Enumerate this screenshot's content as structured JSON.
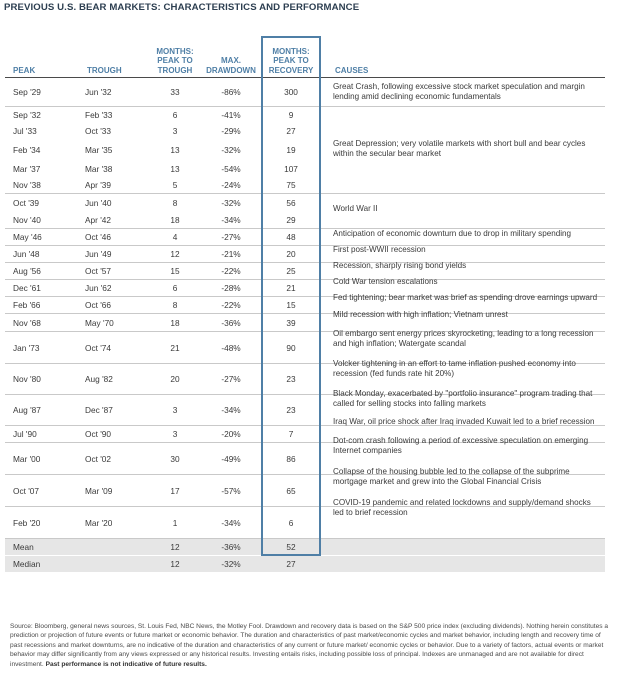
{
  "title": "PREVIOUS U.S. BEAR MARKETS: CHARACTERISTICS AND PERFORMANCE",
  "headers": {
    "peak": "PEAK",
    "trough": "TROUGH",
    "months_to_trough": [
      "MONTHS:",
      "PEAK TO",
      "TROUGH"
    ],
    "max_drawdown": [
      "MAX.",
      "DRAWDOWN"
    ],
    "months_to_recovery": [
      "MONTHS:",
      "PEAK TO",
      "RECOVERY"
    ],
    "causes": "CAUSES"
  },
  "rows": [
    {
      "peak": "Sep '29",
      "trough": "Jun '32",
      "months": "33",
      "drawdown": "-86%",
      "recovery": "300"
    },
    {
      "peak": "Sep '32",
      "trough": "Feb '33",
      "months": "6",
      "drawdown": "-41%",
      "recovery": "9"
    },
    {
      "peak": "Jul '33",
      "trough": "Oct '33",
      "months": "3",
      "drawdown": "-29%",
      "recovery": "27"
    },
    {
      "peak": "Feb '34",
      "trough": "Mar '35",
      "months": "13",
      "drawdown": "-32%",
      "recovery": "19"
    },
    {
      "peak": "Mar '37",
      "trough": "Mar '38",
      "months": "13",
      "drawdown": "-54%",
      "recovery": "107"
    },
    {
      "peak": "Nov '38",
      "trough": "Apr '39",
      "months": "5",
      "drawdown": "-24%",
      "recovery": "75"
    },
    {
      "peak": "Oct '39",
      "trough": "Jun '40",
      "months": "8",
      "drawdown": "-32%",
      "recovery": "56"
    },
    {
      "peak": "Nov '40",
      "trough": "Apr '42",
      "months": "18",
      "drawdown": "-34%",
      "recovery": "29"
    },
    {
      "peak": "May '46",
      "trough": "Oct '46",
      "months": "4",
      "drawdown": "-27%",
      "recovery": "48"
    },
    {
      "peak": "Jun '48",
      "trough": "Jun '49",
      "months": "12",
      "drawdown": "-21%",
      "recovery": "20"
    },
    {
      "peak": "Aug '56",
      "trough": "Oct '57",
      "months": "15",
      "drawdown": "-22%",
      "recovery": "25"
    },
    {
      "peak": "Dec '61",
      "trough": "Jun '62",
      "months": "6",
      "drawdown": "-28%",
      "recovery": "21"
    },
    {
      "peak": "Feb '66",
      "trough": "Oct '66",
      "months": "8",
      "drawdown": "-22%",
      "recovery": "15"
    },
    {
      "peak": "Nov '68",
      "trough": "May '70",
      "months": "18",
      "drawdown": "-36%",
      "recovery": "39"
    },
    {
      "peak": "Jan '73",
      "trough": "Oct '74",
      "months": "21",
      "drawdown": "-48%",
      "recovery": "90"
    },
    {
      "peak": "Nov '80",
      "trough": "Aug '82",
      "months": "20",
      "drawdown": "-27%",
      "recovery": "23"
    },
    {
      "peak": "Aug '87",
      "trough": "Dec '87",
      "months": "3",
      "drawdown": "-34%",
      "recovery": "23"
    },
    {
      "peak": "Jul '90",
      "trough": "Oct '90",
      "months": "3",
      "drawdown": "-20%",
      "recovery": "7"
    },
    {
      "peak": "Mar '00",
      "trough": "Oct '02",
      "months": "30",
      "drawdown": "-49%",
      "recovery": "86"
    },
    {
      "peak": "Oct '07",
      "trough": "Mar '09",
      "months": "17",
      "drawdown": "-57%",
      "recovery": "65"
    },
    {
      "peak": "Feb '20",
      "trough": "Mar '20",
      "months": "1",
      "drawdown": "-34%",
      "recovery": "6"
    }
  ],
  "causes": [
    {
      "text": "Great Crash, following excessive stock market speculation and margin lending amid declining economic fundamentals"
    },
    {
      "text": "Great Depression; very volatile markets with short bull and bear cycles within the secular bear market"
    },
    {
      "text": "World War II"
    },
    {
      "text": "Anticipation of economic downturn due to drop in military spending"
    },
    {
      "text": "First post-WWII recession"
    },
    {
      "text": "Recession, sharply rising bond yields"
    },
    {
      "text": "Cold War tension escalations"
    },
    {
      "text": "Fed tightening; bear market was brief as spending drove earnings upward"
    },
    {
      "text": "Mild recession with high inflation; Vietnam unrest"
    },
    {
      "text": "Oil embargo sent energy prices skyrocketing, leading to a long recession and high inflation; Watergate scandal"
    },
    {
      "text": "Volcker tightening in an effort to tame inflation pushed economy into recession (fed funds rate hit 20%)"
    },
    {
      "text": "Black Monday, exacerbated by \"portfolio insurance\" program trading that called for selling stocks into falling markets"
    },
    {
      "text": "Iraq War, oil price shock after Iraq invaded Kuwait led to a brief recession"
    },
    {
      "text": "Dot-com crash following a period of excessive speculation on emerging Internet companies"
    },
    {
      "text": "Collapse of the housing bubble led to the collapse of the subprime mortgage market and grew into the Global Financial Crisis"
    },
    {
      "text": "COVID-19 pandemic and related lockdowns and supply/demand shocks led to brief recession"
    }
  ],
  "stats": [
    {
      "label": "Mean",
      "months": "12",
      "drawdown": "-36%",
      "recovery": "52"
    },
    {
      "label": "Median",
      "months": "12",
      "drawdown": "-32%",
      "recovery": "27"
    }
  ],
  "source": "Source: Bloomberg, general news sources, St. Louis Fed, NBC News, the Motley Fool. Drawdown and recovery data is based on the S&P 500 price index (excluding dividends). Nothing herein constitutes a prediction or projection of future events or future market or economic behavior. The duration and characteristics of past market/economic cycles and market behavior, including length and recovery time of past recessions and market downturns, are no indicative of the duration and characteristics of any current or future market/ economic cycles or behavior. Due to a variety of factors, actual events or market behavior may differ significantly from any views expressed or any historical results. Investing entails risks, including possible loss of principal. Indexes are unmanaged and are not available for direct investment.",
  "source_bold": "Past performance is not indicative of future results.",
  "colors": {
    "accent": "#4f7fa6",
    "header_text": "#4f7fa6",
    "stat_bg": "#e6e6e6"
  }
}
